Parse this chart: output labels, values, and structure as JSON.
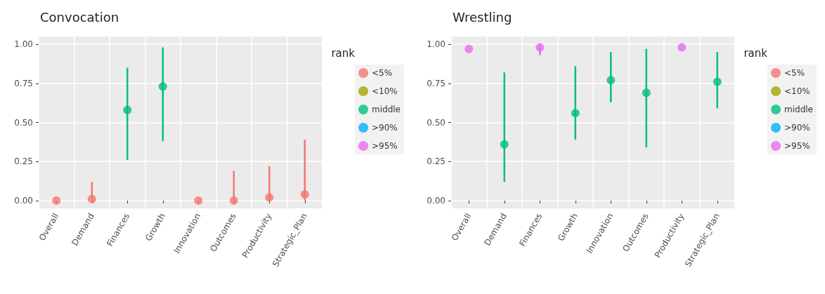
{
  "chart_data": [
    {
      "type": "scatter",
      "title": "Convocation",
      "legend_title": "rank",
      "legend": "right",
      "grid": true,
      "marker": "circle",
      "categories": [
        "Overall",
        "Demand",
        "Finances",
        "Growth",
        "Innovation",
        "Outcomes",
        "Productivity",
        "Strategic_Plan"
      ],
      "ylim": [
        -0.05,
        1.05
      ],
      "yticks": [
        {
          "value": 0,
          "label": "0.00"
        },
        {
          "value": 0.25,
          "label": "0.25"
        },
        {
          "value": 0.5,
          "label": "0.50"
        },
        {
          "value": 0.75,
          "label": "0.75"
        },
        {
          "value": 1,
          "label": "1.00"
        }
      ],
      "series": [
        {
          "name": "<5%",
          "color": "#f8766d",
          "values": [
            0.0,
            0.01,
            null,
            null,
            0.0,
            0.0,
            0.02,
            0.04
          ],
          "errors": [
            null,
            [
              0.0,
              0.12
            ],
            null,
            null,
            null,
            [
              0.0,
              0.19
            ],
            [
              0.0,
              0.22
            ],
            [
              0.0,
              0.39
            ]
          ]
        },
        {
          "name": "<10%",
          "color": "#a3a500",
          "values": [
            null,
            null,
            null,
            null,
            null,
            null,
            null,
            null
          ]
        },
        {
          "name": "middle",
          "color": "#00bf7d",
          "values": [
            null,
            null,
            0.58,
            0.73,
            null,
            null,
            null,
            null
          ],
          "errors": [
            null,
            null,
            [
              0.26,
              0.85
            ],
            [
              0.38,
              0.98
            ],
            null,
            null,
            null,
            null
          ]
        },
        {
          "name": ">90%",
          "color": "#00b0f6",
          "values": [
            null,
            null,
            null,
            null,
            null,
            null,
            null,
            null
          ]
        },
        {
          "name": ">95%",
          "color": "#e76bf3",
          "values": [
            null,
            null,
            null,
            null,
            null,
            null,
            null,
            null
          ]
        }
      ]
    },
    {
      "type": "scatter",
      "title": "Wrestling",
      "legend_title": "rank",
      "legend": "right",
      "grid": true,
      "marker": "circle",
      "categories": [
        "Overall",
        "Demand",
        "Finances",
        "Growth",
        "Innovation",
        "Outcomes",
        "Productivity",
        "Strategic_Plan"
      ],
      "ylim": [
        -0.05,
        1.05
      ],
      "yticks": [
        {
          "value": 0,
          "label": "0.00"
        },
        {
          "value": 0.25,
          "label": "0.25"
        },
        {
          "value": 0.5,
          "label": "0.50"
        },
        {
          "value": 0.75,
          "label": "0.75"
        },
        {
          "value": 1,
          "label": "1.00"
        }
      ],
      "series": [
        {
          "name": "<5%",
          "color": "#f8766d",
          "values": [
            null,
            null,
            null,
            null,
            null,
            null,
            null,
            null
          ]
        },
        {
          "name": "<10%",
          "color": "#a3a500",
          "values": [
            null,
            null,
            null,
            null,
            null,
            null,
            null,
            null
          ]
        },
        {
          "name": "middle",
          "color": "#00bf7d",
          "values": [
            null,
            0.36,
            null,
            0.56,
            0.77,
            0.69,
            null,
            0.76
          ],
          "errors": [
            null,
            [
              0.12,
              0.82
            ],
            null,
            [
              0.39,
              0.86
            ],
            [
              0.63,
              0.95
            ],
            [
              0.34,
              0.97
            ],
            null,
            [
              0.59,
              0.95
            ]
          ]
        },
        {
          "name": ">90%",
          "color": "#00b0f6",
          "values": [
            null,
            null,
            null,
            null,
            null,
            null,
            null,
            null
          ]
        },
        {
          "name": ">95%",
          "color": "#e76bf3",
          "values": [
            0.97,
            null,
            0.98,
            null,
            null,
            null,
            0.98,
            null
          ],
          "errors": [
            null,
            null,
            [
              0.93,
              1.0
            ],
            null,
            null,
            null,
            null,
            null
          ]
        }
      ]
    }
  ]
}
